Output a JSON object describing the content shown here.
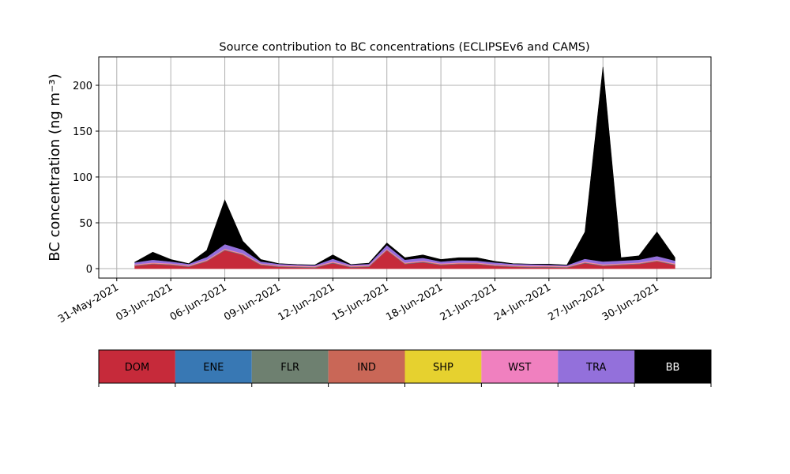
{
  "chart_data": {
    "type": "stacked_area",
    "title": "Source contribution to BC concentrations (ECLIPSEv6 and CAMS)",
    "y_label": "BC concentration (ng m⁻³)",
    "x": [
      "2021-06-01",
      "2021-06-02",
      "2021-06-03",
      "2021-06-04",
      "2021-06-05",
      "2021-06-06",
      "2021-06-07",
      "2021-06-08",
      "2021-06-09",
      "2021-06-10",
      "2021-06-11",
      "2021-06-12",
      "2021-06-13",
      "2021-06-14",
      "2021-06-15",
      "2021-06-16",
      "2021-06-17",
      "2021-06-18",
      "2021-06-19",
      "2021-06-20",
      "2021-06-21",
      "2021-06-22",
      "2021-06-23",
      "2021-06-24",
      "2021-06-25",
      "2021-06-26",
      "2021-06-27",
      "2021-06-28",
      "2021-06-29",
      "2021-06-30",
      "2021-07-01"
    ],
    "series": [
      {
        "name": "DOM",
        "color": "#c62a3a",
        "values": [
          3,
          5,
          4,
          2,
          8,
          20,
          15,
          4,
          2,
          1.5,
          1,
          6,
          1.5,
          2,
          20,
          5,
          7,
          4,
          5,
          5,
          3,
          2,
          1.5,
          1.5,
          1,
          6,
          3,
          4,
          5,
          8,
          4
        ]
      },
      {
        "name": "ENE",
        "color": "#3878b4",
        "values": [
          0.3,
          0.3,
          0.3,
          0.3,
          0.3,
          0.3,
          0.3,
          0.3,
          0.3,
          0.3,
          0.3,
          0.3,
          0.3,
          0.3,
          0.3,
          0.3,
          0.3,
          0.3,
          0.3,
          0.3,
          0.3,
          0.3,
          0.3,
          0.3,
          0.3,
          0.3,
          0.3,
          0.3,
          0.3,
          0.3,
          0.3
        ]
      },
      {
        "name": "FLR",
        "color": "#6e8070",
        "values": [
          0.1,
          0.1,
          0.1,
          0.1,
          0.1,
          0.1,
          0.1,
          0.1,
          0.1,
          0.1,
          0.1,
          0.1,
          0.1,
          0.1,
          0.1,
          0.1,
          0.1,
          0.1,
          0.1,
          0.1,
          0.1,
          0.1,
          0.1,
          0.1,
          0.1,
          0.1,
          0.1,
          0.1,
          0.1,
          0.1,
          0.1
        ]
      },
      {
        "name": "IND",
        "color": "#c96757",
        "values": [
          0.5,
          0.5,
          0.5,
          0.5,
          0.5,
          0.5,
          0.5,
          0.5,
          0.5,
          0.5,
          0.5,
          0.5,
          0.5,
          0.5,
          0.5,
          0.5,
          0.5,
          0.5,
          0.5,
          0.5,
          0.5,
          0.5,
          0.5,
          0.5,
          0.5,
          0.5,
          0.5,
          0.5,
          0.5,
          0.5,
          0.5
        ]
      },
      {
        "name": "SHP",
        "color": "#e6d12f",
        "values": [
          0.1,
          0.1,
          0.1,
          0.1,
          0.1,
          0.1,
          0.1,
          0.1,
          0.1,
          0.1,
          0.1,
          0.1,
          0.1,
          0.1,
          0.1,
          0.1,
          0.1,
          0.1,
          0.1,
          0.1,
          0.1,
          0.1,
          0.1,
          0.1,
          0.1,
          0.1,
          0.1,
          0.1,
          0.1,
          0.1,
          0.1
        ]
      },
      {
        "name": "WST",
        "color": "#f080bf",
        "values": [
          0.8,
          0.8,
          0.8,
          0.8,
          0.8,
          0.8,
          0.8,
          0.8,
          0.8,
          0.8,
          0.8,
          0.8,
          0.8,
          0.8,
          0.8,
          0.8,
          0.8,
          0.8,
          0.8,
          0.8,
          0.8,
          0.8,
          0.8,
          0.8,
          0.8,
          0.8,
          0.8,
          0.8,
          0.8,
          0.8,
          0.8
        ]
      },
      {
        "name": "TRA",
        "color": "#9370db",
        "values": [
          2,
          3,
          2,
          1.5,
          3,
          5,
          4,
          2,
          1.5,
          1,
          1,
          3,
          1,
          1.5,
          4,
          3,
          3,
          2,
          2.5,
          2,
          2,
          1.5,
          1.5,
          1,
          1,
          3,
          3,
          3,
          3,
          4,
          3
        ]
      },
      {
        "name": "BB",
        "color": "#000000",
        "values": [
          0.2,
          8.2,
          2.2,
          0.2,
          7.2,
          48.2,
          9.2,
          2.2,
          0.2,
          0.2,
          0.2,
          4.2,
          0.2,
          0.7,
          2.2,
          2.2,
          3.2,
          2.2,
          2.7,
          3.2,
          1.2,
          0.2,
          0.2,
          0.7,
          0.2,
          29.2,
          212.2,
          3.2,
          4.2,
          26.2,
          3.2
        ]
      }
    ],
    "xlim": [
      "2021-05-30",
      "2021-07-03"
    ],
    "xticks": [
      {
        "value": "2021-05-31",
        "label": "31-May-2021"
      },
      {
        "value": "2021-06-03",
        "label": "03-Jun-2021"
      },
      {
        "value": "2021-06-06",
        "label": "06-Jun-2021"
      },
      {
        "value": "2021-06-09",
        "label": "09-Jun-2021"
      },
      {
        "value": "2021-06-12",
        "label": "12-Jun-2021"
      },
      {
        "value": "2021-06-15",
        "label": "15-Jun-2021"
      },
      {
        "value": "2021-06-18",
        "label": "18-Jun-2021"
      },
      {
        "value": "2021-06-21",
        "label": "21-Jun-2021"
      },
      {
        "value": "2021-06-24",
        "label": "24-Jun-2021"
      },
      {
        "value": "2021-06-27",
        "label": "27-Jun-2021"
      },
      {
        "value": "2021-06-30",
        "label": "30-Jun-2021"
      }
    ],
    "ylim": [
      -10.3,
      231
    ],
    "yticks": [
      0,
      50,
      100,
      150,
      200
    ],
    "grid": true
  }
}
